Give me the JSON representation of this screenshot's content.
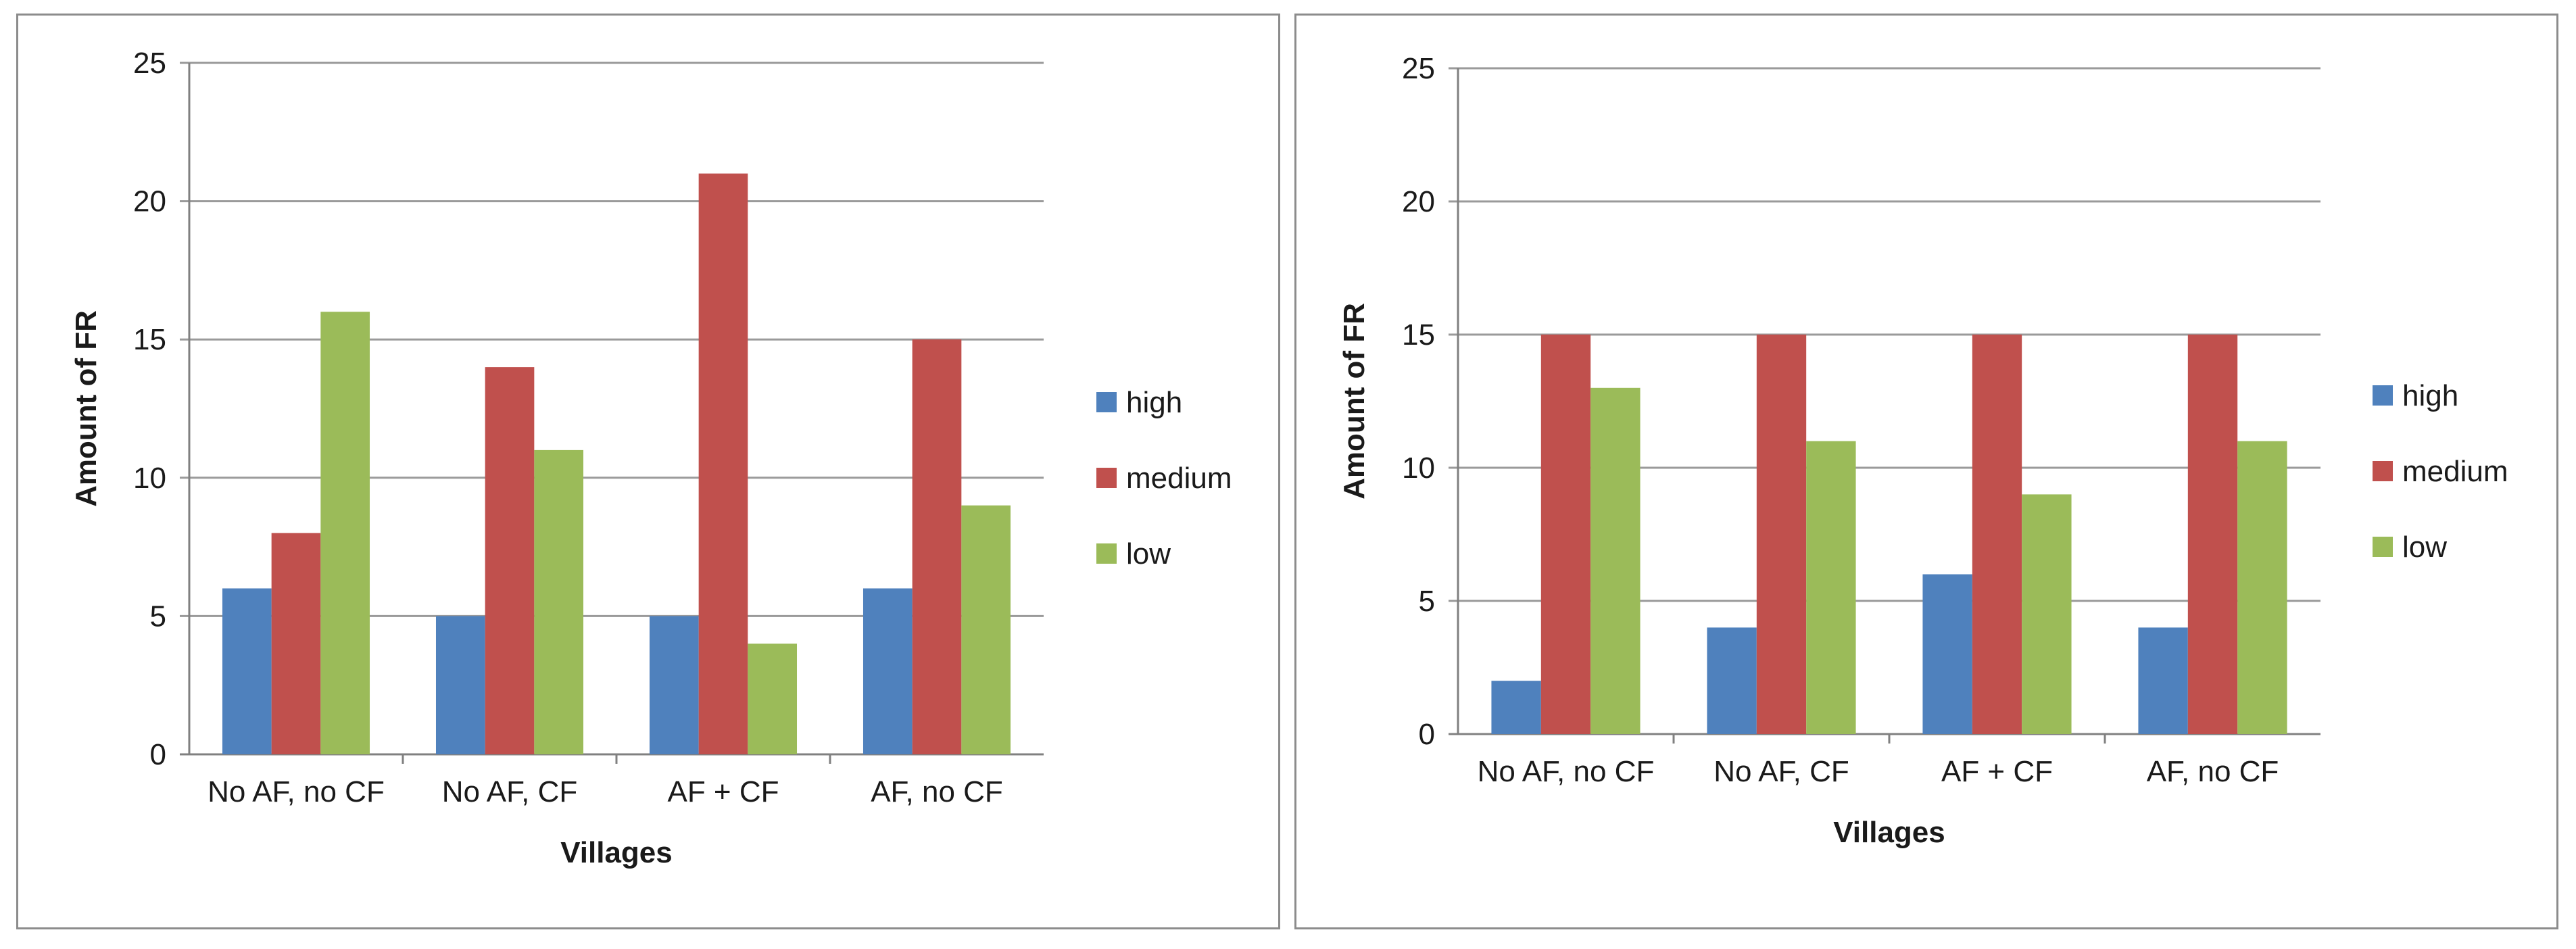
{
  "chart_data": [
    {
      "type": "bar",
      "title": "",
      "xlabel": "Villages",
      "ylabel": "Amount of FR",
      "ylim": [
        0,
        25
      ],
      "yticks": [
        0,
        5,
        10,
        15,
        20,
        25
      ],
      "grid": true,
      "legend_position": "right",
      "categories": [
        "No AF, no CF",
        "No AF, CF",
        "AF + CF",
        "AF, no CF"
      ],
      "series": [
        {
          "name": "high",
          "color": "#4f81bd",
          "values": [
            6,
            5,
            5,
            6
          ]
        },
        {
          "name": "medium",
          "color": "#c0504d",
          "values": [
            8,
            14,
            21,
            15
          ]
        },
        {
          "name": "low",
          "color": "#9bbb59",
          "values": [
            16,
            11,
            4,
            9
          ]
        }
      ]
    },
    {
      "type": "bar",
      "title": "",
      "xlabel": "Villages",
      "ylabel": "Amount of FR",
      "ylim": [
        0,
        25
      ],
      "yticks": [
        0,
        5,
        10,
        15,
        20,
        25
      ],
      "grid": true,
      "legend_position": "right",
      "categories": [
        "No AF, no CF",
        "No AF, CF",
        "AF + CF",
        "AF, no CF"
      ],
      "series": [
        {
          "name": "high",
          "color": "#4f81bd",
          "values": [
            2,
            4,
            6,
            4
          ]
        },
        {
          "name": "medium",
          "color": "#c0504d",
          "values": [
            15,
            15,
            15,
            15
          ]
        },
        {
          "name": "low",
          "color": "#9bbb59",
          "values": [
            13,
            11,
            9,
            11
          ]
        }
      ]
    }
  ]
}
